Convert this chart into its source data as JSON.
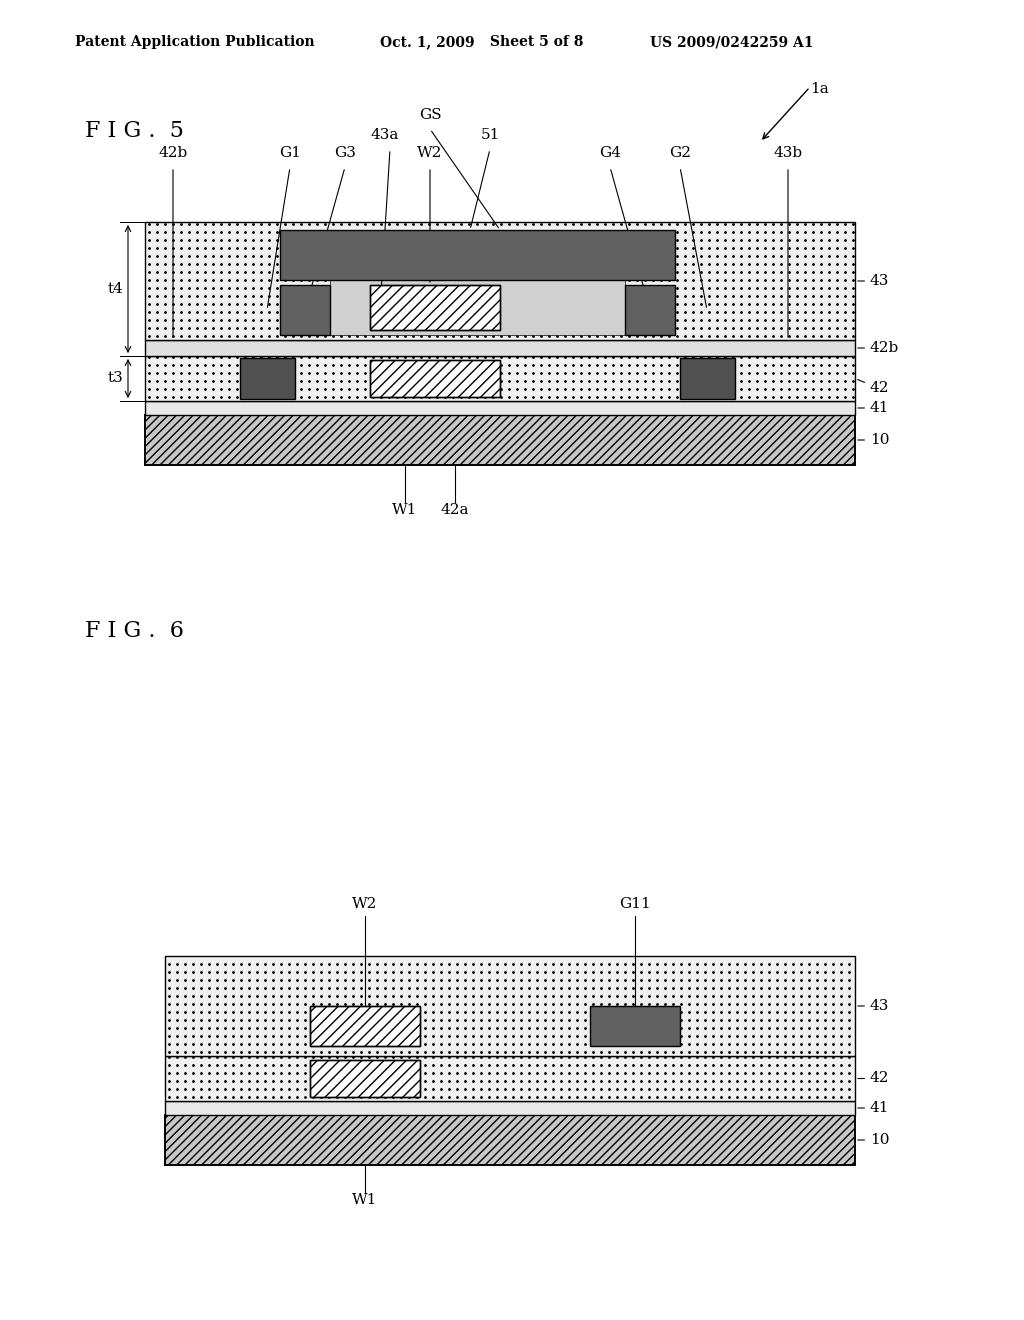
{
  "bg_color": "#ffffff",
  "header_text": "Patent Application Publication",
  "header_date": "Oct. 1, 2009",
  "header_sheet": "Sheet 5 of 8",
  "header_patent": "US 2009/0242259 A1"
}
